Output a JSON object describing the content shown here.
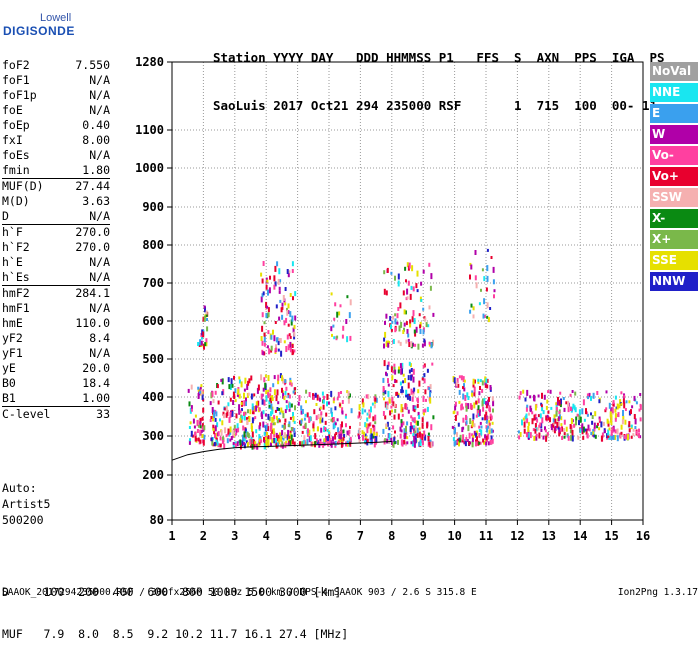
{
  "logo": {
    "line1": "Lowell",
    "line2": "DIGISONDE"
  },
  "header": {
    "line1": "Station YYYY DAY   DDD HHMMSS P1   FFS  S  AXN  PPS  IGA  PS",
    "line2": "SaoLuis 2017 Oct21 294 235000 RSF       1  715  100  00- 11"
  },
  "params_group1": [
    {
      "k": "foF2",
      "v": "7.550"
    },
    {
      "k": "foF1",
      "v": "N/A"
    },
    {
      "k": "foF1p",
      "v": "N/A"
    },
    {
      "k": "foE",
      "v": "N/A"
    },
    {
      "k": "foEp",
      "v": "0.40"
    },
    {
      "k": "fxI",
      "v": "8.00"
    },
    {
      "k": "foEs",
      "v": "N/A"
    },
    {
      "k": "fmin",
      "v": "1.80"
    }
  ],
  "params_group2": [
    {
      "k": "MUF(D)",
      "v": "27.44"
    },
    {
      "k": "M(D)",
      "v": "3.63"
    },
    {
      "k": "D",
      "v": "N/A"
    }
  ],
  "params_group3": [
    {
      "k": "h`F",
      "v": "270.0"
    },
    {
      "k": "h`F2",
      "v": "270.0"
    },
    {
      "k": "h`E",
      "v": "N/A"
    },
    {
      "k": "h`Es",
      "v": "N/A"
    }
  ],
  "params_group4": [
    {
      "k": "hmF2",
      "v": "284.1"
    },
    {
      "k": "hmF1",
      "v": "N/A"
    },
    {
      "k": "hmE",
      "v": "110.0"
    },
    {
      "k": "yF2",
      "v": "8.4"
    },
    {
      "k": "yF1",
      "v": "N/A"
    },
    {
      "k": "yE",
      "v": "20.0"
    },
    {
      "k": "B0",
      "v": "18.4"
    },
    {
      "k": "B1",
      "v": "1.00"
    }
  ],
  "clevel": {
    "k": "C-level",
    "v": "33"
  },
  "auto": [
    "Auto:",
    "Artist5",
    "500200"
  ],
  "distance_row": "D     100  200  400  600  800 1000 1500 3000 [km]",
  "muf_row": "MUF   7.9  8.0  8.5  9.2 10.2 11.7 16.1 27.4 [MHz]",
  "footer_left": "SAAOK_2017294235000.RSF / 300fx256h 50 kHz 5.0 km / DPS-4 SAAOK 903 / 2.6 S 315.8 E",
  "footer_right": "Ion2Png 1.3.17",
  "legend": [
    {
      "label": "NoVal",
      "color": "#a0a0a0"
    },
    {
      "label": "NNE",
      "color": "#19e6f0"
    },
    {
      "label": "E",
      "color": "#3aa0ee"
    },
    {
      "label": "W",
      "color": "#b000a8"
    },
    {
      "label": "Vo-",
      "color": "#ff40a0"
    },
    {
      "label": "Vo+",
      "color": "#e8002e"
    },
    {
      "label": "SSW",
      "color": "#f5b0b0"
    },
    {
      "label": "X-",
      "color": "#0a8a12"
    },
    {
      "label": "X+",
      "color": "#7ab84a"
    },
    {
      "label": "SSE",
      "color": "#e6e000"
    },
    {
      "label": "NNW",
      "color": "#2020c8"
    }
  ],
  "chart_data": {
    "type": "scatter",
    "title": "",
    "xlabel": "",
    "ylabel": "",
    "xlim": [
      1,
      16
    ],
    "ylim": [
      80,
      1280
    ],
    "xticks": [
      1,
      2,
      3,
      4,
      5,
      6,
      7,
      8,
      9,
      10,
      11,
      12,
      13,
      14,
      15,
      16
    ],
    "yticks": [
      80,
      200,
      300,
      400,
      500,
      600,
      700,
      800,
      900,
      1000,
      1100,
      1280
    ],
    "grid": true,
    "trace": [
      [
        1.0,
        238
      ],
      [
        1.5,
        252
      ],
      [
        2.0,
        260
      ],
      [
        2.5,
        266
      ],
      [
        3.0,
        270
      ],
      [
        3.5,
        272
      ],
      [
        4.0,
        273
      ],
      [
        5.0,
        276
      ],
      [
        6.0,
        279
      ],
      [
        7.0,
        282
      ],
      [
        7.55,
        284
      ],
      [
        8.0,
        286
      ]
    ],
    "echo_clusters": [
      {
        "x": [
          1.5,
          2.0
        ],
        "y": [
          290,
          440
        ],
        "n": 60
      },
      {
        "x": [
          1.8,
          2.1
        ],
        "y": [
          540,
          660
        ],
        "n": 25
      },
      {
        "x": [
          2.2,
          3.8
        ],
        "y": [
          280,
          460
        ],
        "n": 220
      },
      {
        "x": [
          3.8,
          4.9
        ],
        "y": [
          280,
          470
        ],
        "n": 200
      },
      {
        "x": [
          3.8,
          4.9
        ],
        "y": [
          520,
          760
        ],
        "n": 110
      },
      {
        "x": [
          5.0,
          6.7
        ],
        "y": [
          285,
          420
        ],
        "n": 180
      },
      {
        "x": [
          6.0,
          6.7
        ],
        "y": [
          560,
          680
        ],
        "n": 20
      },
      {
        "x": [
          6.9,
          7.5
        ],
        "y": [
          285,
          410
        ],
        "n": 70
      },
      {
        "x": [
          7.7,
          9.3
        ],
        "y": [
          285,
          500
        ],
        "n": 230
      },
      {
        "x": [
          7.7,
          9.3
        ],
        "y": [
          540,
          760
        ],
        "n": 110
      },
      {
        "x": [
          9.9,
          11.2
        ],
        "y": [
          285,
          460
        ],
        "n": 180
      },
      {
        "x": [
          10.4,
          11.3
        ],
        "y": [
          610,
          800
        ],
        "n": 30
      },
      {
        "x": [
          12.0,
          15.9
        ],
        "y": [
          300,
          420
        ],
        "n": 320
      }
    ]
  }
}
